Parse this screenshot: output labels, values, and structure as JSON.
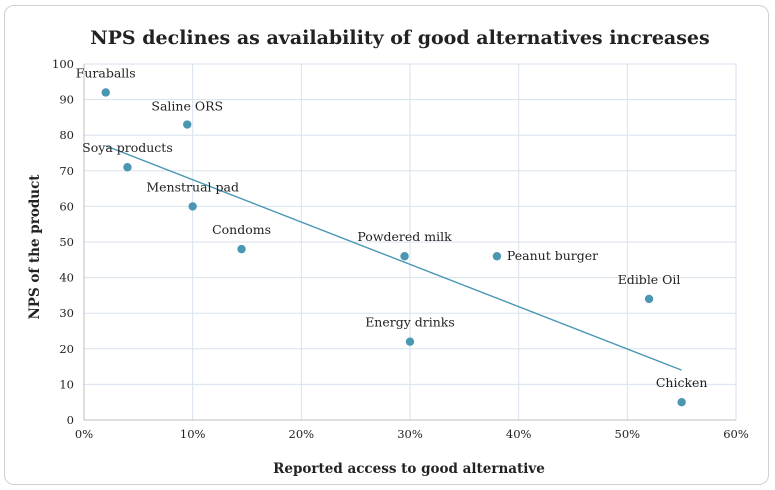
{
  "chart_data": {
    "type": "scatter",
    "title": "NPS declines as availability of good alternatives increases",
    "xlabel": "Reported access to good alternative",
    "ylabel": "NPS of the product",
    "xlim": [
      0,
      0.6
    ],
    "ylim": [
      0,
      100
    ],
    "x_ticks": [
      0,
      0.1,
      0.2,
      0.3,
      0.4,
      0.5,
      0.6
    ],
    "x_tick_labels": [
      "0%",
      "10%",
      "20%",
      "30%",
      "40%",
      "50%",
      "60%"
    ],
    "y_ticks": [
      0,
      10,
      20,
      30,
      40,
      50,
      60,
      70,
      80,
      90,
      100
    ],
    "y_tick_labels": [
      "0",
      "10",
      "20",
      "30",
      "40",
      "50",
      "60",
      "70",
      "80",
      "90",
      "100"
    ],
    "grid": true,
    "point_color": "#4a97b4",
    "trendline_color": "#4a97b4",
    "points": [
      {
        "label": "Furaballs",
        "x": 0.02,
        "y": 92
      },
      {
        "label": "Saline ORS",
        "x": 0.095,
        "y": 83
      },
      {
        "label": "Soya products",
        "x": 0.04,
        "y": 71
      },
      {
        "label": "Menstrual pad",
        "x": 0.1,
        "y": 60
      },
      {
        "label": "Condoms",
        "x": 0.145,
        "y": 48
      },
      {
        "label": "Powdered milk",
        "x": 0.295,
        "y": 46
      },
      {
        "label": "Peanut burger",
        "x": 0.38,
        "y": 46
      },
      {
        "label": "Edible Oil",
        "x": 0.52,
        "y": 34
      },
      {
        "label": "Energy drinks",
        "x": 0.3,
        "y": 22
      },
      {
        "label": "Chicken",
        "x": 0.55,
        "y": 5
      }
    ],
    "trendline": {
      "x": [
        0.02,
        0.55
      ],
      "y": [
        77,
        14
      ]
    }
  }
}
